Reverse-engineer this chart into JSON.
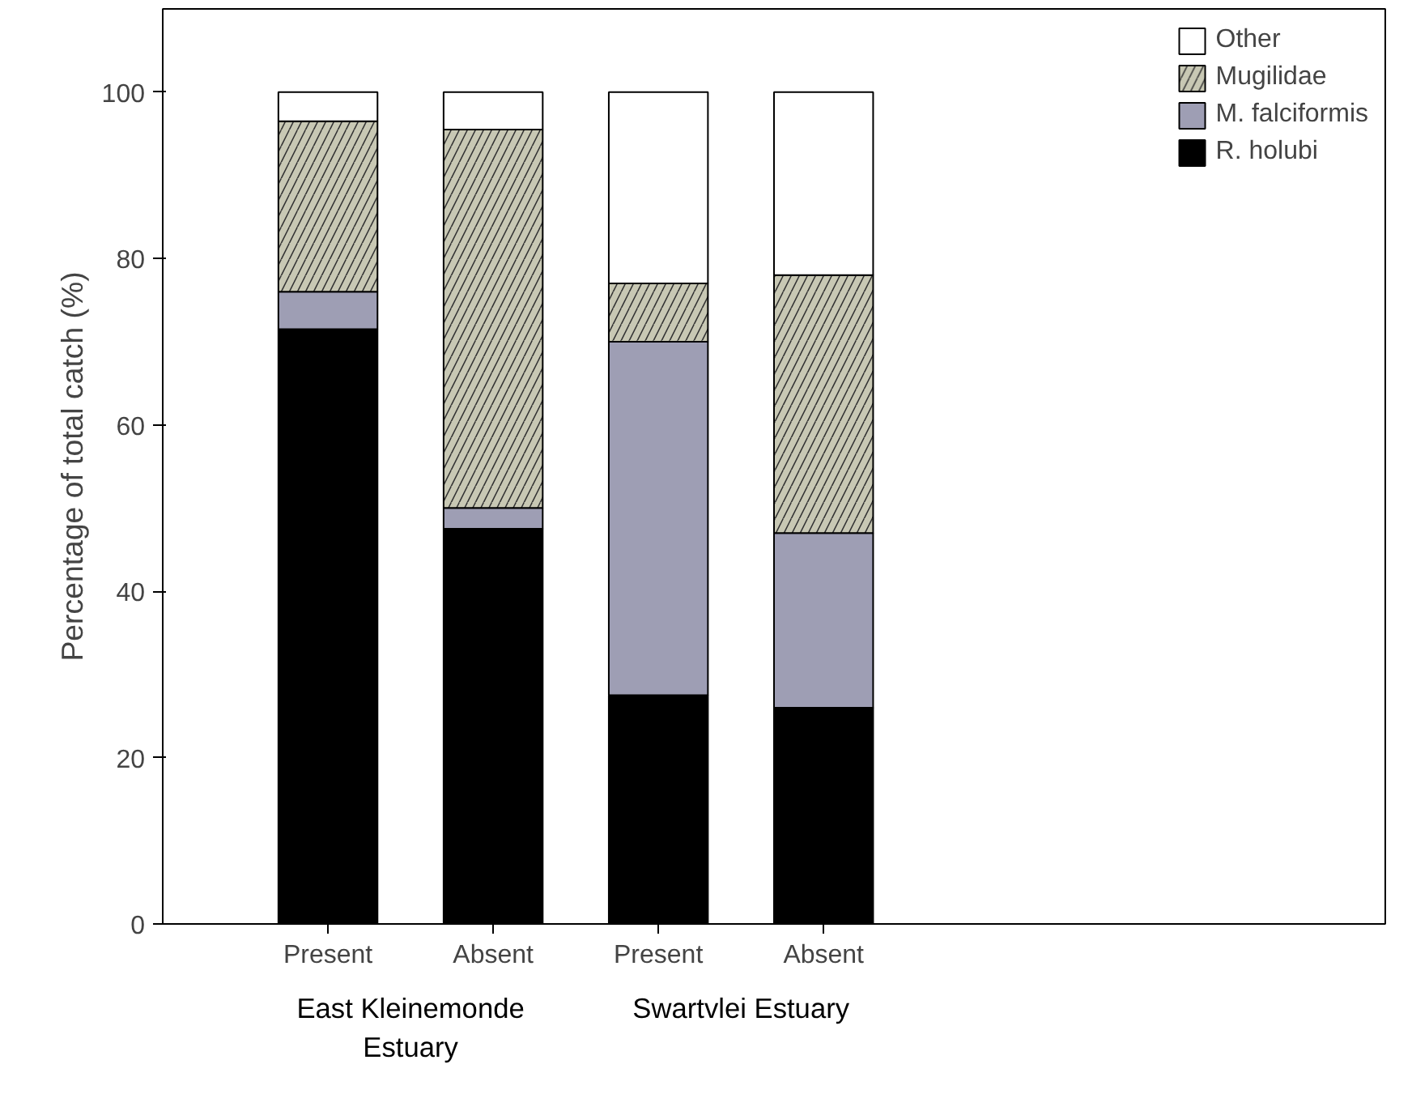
{
  "chart_data": {
    "type": "bar",
    "stacked": true,
    "ylabel": "Percentage of total catch (%)",
    "categories": [
      "Present",
      "Absent",
      "Present",
      "Absent"
    ],
    "series": [
      {
        "name": "R. holubi",
        "color": "#000000",
        "values": [
          71.5,
          47.5,
          27.5,
          26
        ]
      },
      {
        "name": "M. falciformis",
        "color": "#9e9eb4",
        "values": [
          4.5,
          2.5,
          42.5,
          21
        ]
      },
      {
        "name": "Mugilidae",
        "color": "#c8c8b4",
        "values": [
          20.5,
          45.5,
          7,
          31
        ]
      },
      {
        "name": "Other",
        "color": "#ffffff",
        "values": [
          3.5,
          4.5,
          23,
          22
        ]
      }
    ],
    "ylim": [
      0,
      110
    ],
    "yticks": [
      0,
      20,
      40,
      60,
      80,
      100
    ],
    "grid": false,
    "legend": "top right",
    "annotations": [
      "East Kleinemonde\nEstuary",
      "Swartvlei Estuary"
    ]
  }
}
